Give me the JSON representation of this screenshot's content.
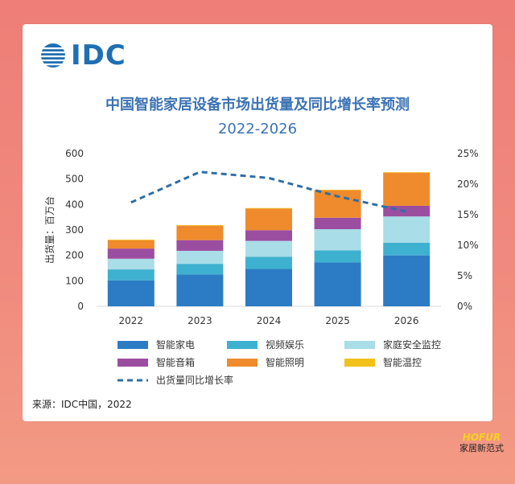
{
  "brand": {
    "en": "HOFUR",
    "cn": "家居新范式"
  },
  "logo": {
    "text": "IDC"
  },
  "title": {
    "line1": "中国智能家居设备市场出货量及同比增长率预测",
    "line2": "2022-2026"
  },
  "source": "来源：IDC中国，2022",
  "colors": {
    "smart_appliance": "#2b7cc4",
    "video_entertainment": "#3fb1d0",
    "home_security": "#a9dde8",
    "smart_speaker": "#9b4ea0",
    "smart_lighting": "#ef8b2c",
    "smart_temp": "#f3c21a",
    "growth_line": "#2f6ea6"
  },
  "chart_data": {
    "type": "bar",
    "stacked": true,
    "categories": [
      "2022",
      "2023",
      "2024",
      "2025",
      "2026"
    ],
    "ylabel": "出货量：百万台",
    "ylim": [
      0,
      600
    ],
    "yticks": [
      "0",
      "100",
      "200",
      "300",
      "400",
      "500",
      "600"
    ],
    "y2lim": [
      0,
      25
    ],
    "y2ticks": [
      "0%",
      "5%",
      "10%",
      "15%",
      "20%",
      "25%"
    ],
    "series": [
      {
        "name": "智能家电",
        "key": "smart_appliance",
        "values": [
          102,
          125,
          147,
          172,
          200
        ]
      },
      {
        "name": "视频娱乐",
        "key": "video_entertainment",
        "values": [
          43,
          42,
          48,
          48,
          50
        ]
      },
      {
        "name": "家庭安全监控",
        "key": "home_security",
        "values": [
          42,
          51,
          62,
          83,
          103
        ]
      },
      {
        "name": "智能音箱",
        "key": "smart_speaker",
        "values": [
          40,
          42,
          42,
          45,
          42
        ]
      },
      {
        "name": "智能照明",
        "key": "smart_lighting",
        "values": [
          33,
          57,
          85,
          108,
          130
        ]
      },
      {
        "name": "智能温控",
        "key": "smart_temp",
        "values": [
          2,
          2,
          2,
          2,
          2
        ]
      }
    ],
    "line": {
      "name": "出货量同比增长率",
      "values": [
        17,
        22,
        21,
        18,
        15.5
      ]
    },
    "grid": false,
    "legend_position": "bottom"
  }
}
